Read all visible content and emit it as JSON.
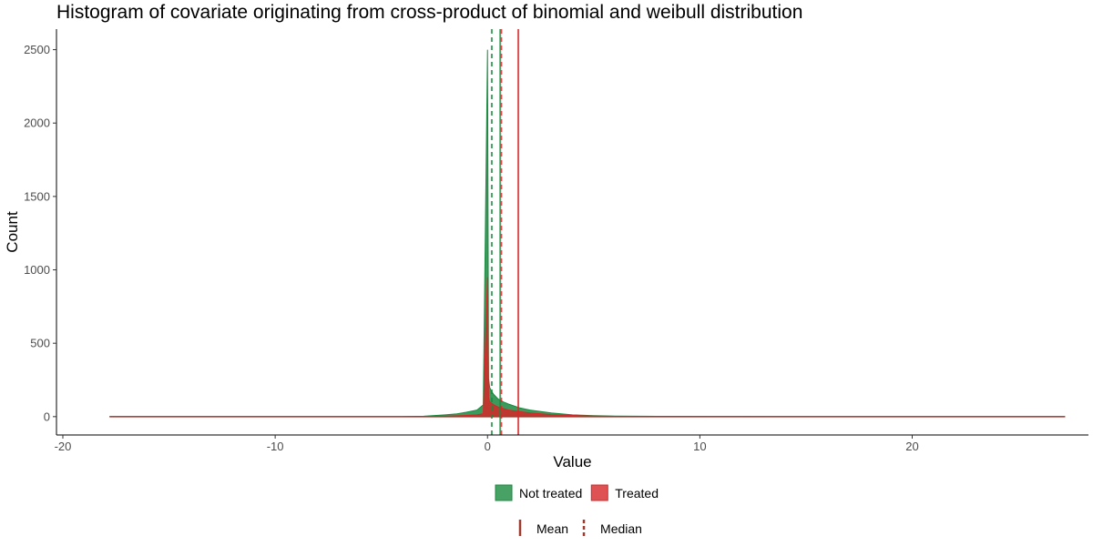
{
  "chart_data": {
    "type": "histogram",
    "title": "Histogram of covariate originating from cross-product of binomial and weibull distribution",
    "xlabel": "Value",
    "ylabel": "Count",
    "xlim": [
      -20.3,
      28.3
    ],
    "ylim": [
      -125,
      2640
    ],
    "x_ticks": [
      -20,
      -10,
      0,
      10,
      20
    ],
    "y_ticks": [
      0,
      500,
      1000,
      1500,
      2000,
      2500
    ],
    "grid": false,
    "legend_position": "bottom",
    "series": [
      {
        "name": "Not treated",
        "color": "#1a8a3f",
        "x": [
          -17.8,
          -4,
          -3,
          -2,
          -1.5,
          -1,
          -0.5,
          -0.2,
          0,
          0.05,
          0.1,
          0.2,
          0.3,
          0.5,
          0.75,
          1,
          1.5,
          2,
          3,
          4,
          5,
          6,
          8,
          10,
          15,
          20,
          27.2
        ],
        "values": [
          0,
          0,
          3,
          12,
          18,
          30,
          45,
          80,
          2500,
          260,
          200,
          170,
          150,
          120,
          100,
          85,
          60,
          45,
          25,
          12,
          7,
          4,
          2,
          1,
          0,
          0,
          0
        ],
        "mean": 0.6,
        "median": 0.2
      },
      {
        "name": "Treated",
        "color": "#d62728",
        "x": [
          -17.8,
          -4,
          -3,
          -2,
          -1.5,
          -1,
          -0.5,
          -0.2,
          0,
          0.05,
          0.1,
          0.2,
          0.3,
          0.5,
          0.75,
          1,
          1.5,
          2,
          3,
          4,
          5,
          6,
          8,
          10,
          15,
          20,
          27.2
        ],
        "values": [
          0,
          0,
          1,
          3,
          5,
          8,
          12,
          20,
          950,
          130,
          100,
          90,
          80,
          65,
          55,
          45,
          35,
          25,
          14,
          8,
          4,
          2,
          1,
          0,
          0,
          0,
          0
        ],
        "mean": 1.45,
        "median": 0.65
      }
    ],
    "legend_fill": [
      {
        "label": "Not treated",
        "color": "#1a8a3f"
      },
      {
        "label": "Treated",
        "color": "#d62728"
      }
    ],
    "legend_lines": [
      {
        "label": "Mean",
        "style": "solid"
      },
      {
        "label": "Median",
        "style": "dashed"
      }
    ],
    "legend_line_color": "#9e3a2e"
  }
}
